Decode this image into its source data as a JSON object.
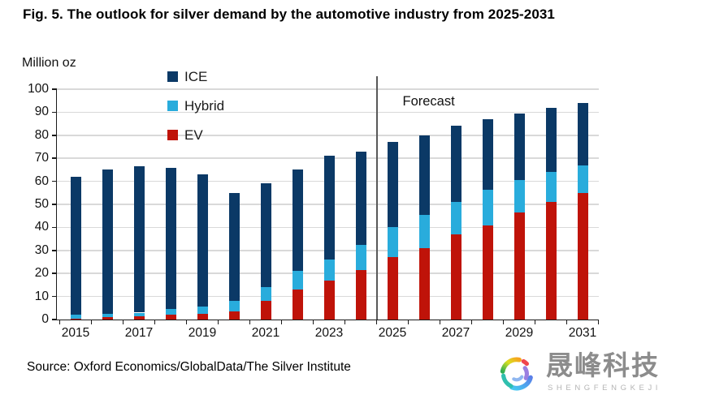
{
  "title": "Fig. 5. The outlook for silver demand by the automotive industry from 2025-2031",
  "source": {
    "text": "Source: Oxford Economics/GlobalData/The Silver Institute"
  },
  "watermark": {
    "logo_icon": "rainbow-swirl-logo",
    "cjk_text": "晟峰科技",
    "latin_text": "SHENGFENGKEJI"
  },
  "chart_data": {
    "type": "bar",
    "stacked": true,
    "unit_label": "Million oz",
    "categories": [
      "2015",
      "2016",
      "2017",
      "2018",
      "2019",
      "2020",
      "2021",
      "2022",
      "2023",
      "2024",
      "2025",
      "2026",
      "2027",
      "2028",
      "2029",
      "2030",
      "2031"
    ],
    "series": [
      {
        "name": "EV",
        "color": "#bf1309",
        "values": [
          0.5,
          1,
          1.5,
          2,
          2.5,
          3.5,
          8,
          13,
          17,
          21.5,
          27,
          31,
          37,
          41,
          46.5,
          51,
          55
        ]
      },
      {
        "name": "Hybrid",
        "color": "#29acdc",
        "values": [
          1.5,
          1.5,
          1.5,
          2.5,
          3,
          4.5,
          6,
          8,
          9,
          11,
          13,
          14.5,
          14,
          15.5,
          14,
          13,
          12
        ]
      },
      {
        "name": "ICE",
        "color": "#0b3966",
        "values": [
          60,
          62.5,
          63.5,
          61.5,
          57.5,
          47,
          45,
          44,
          45,
          40.5,
          37,
          34.5,
          33,
          30.5,
          29,
          28,
          27
        ]
      }
    ],
    "totals": [
      62,
      65,
      66.5,
      66,
      63,
      55,
      59,
      65,
      71,
      73,
      77,
      80,
      84,
      87,
      89.5,
      92,
      94
    ],
    "ylim": [
      0,
      100
    ],
    "yticks": [
      0,
      10,
      20,
      30,
      40,
      50,
      60,
      70,
      80,
      90,
      100
    ],
    "xtick_labels": [
      "2015",
      "2017",
      "2019",
      "2021",
      "2023",
      "2025",
      "2027",
      "2029",
      "2031"
    ],
    "grid": "horizontal",
    "forecast": {
      "label": "Forecast",
      "start_category": "2025"
    },
    "legend": {
      "position": "upper-left-vertical",
      "items": [
        "ICE",
        "Hybrid",
        "EV"
      ]
    }
  }
}
